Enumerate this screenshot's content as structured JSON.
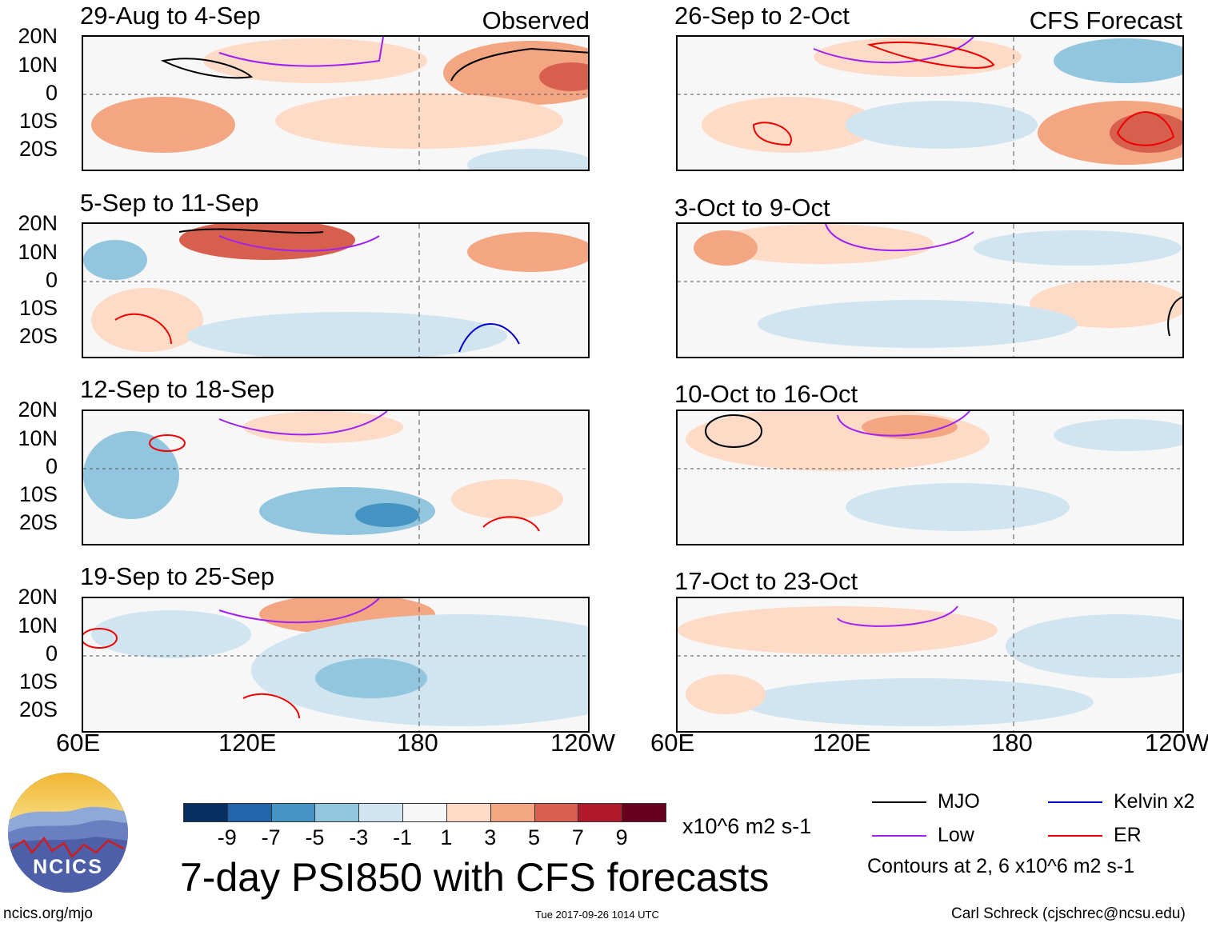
{
  "panels": [
    {
      "title": "29-Aug to 4-Sep",
      "label": "Observed"
    },
    {
      "title": "5-Sep to 11-Sep",
      "label": ""
    },
    {
      "title": "12-Sep to 18-Sep",
      "label": ""
    },
    {
      "title": "19-Sep to 25-Sep",
      "label": ""
    },
    {
      "title": "26-Sep to 2-Oct",
      "label": "CFS Forecast"
    },
    {
      "title": "3-Oct to 9-Oct",
      "label": ""
    },
    {
      "title": "10-Oct to 16-Oct",
      "label": ""
    },
    {
      "title": "17-Oct to 23-Oct",
      "label": ""
    }
  ],
  "lat_labels": [
    "20N",
    "10N",
    "0",
    "10S",
    "20S"
  ],
  "lon_labels": [
    "60E",
    "120E",
    "180",
    "120W"
  ],
  "colorbar": {
    "colors": [
      "#053061",
      "#2166ac",
      "#4393c3",
      "#92c5de",
      "#d1e5f0",
      "#f7f7f7",
      "#fddbc7",
      "#f4a582",
      "#d6604d",
      "#b2182b",
      "#67001f"
    ],
    "ticks": [
      "-9",
      "-7",
      "-5",
      "-3",
      "-1",
      "1",
      "3",
      "5",
      "7",
      "9"
    ],
    "units": "x10^6 m2 s-1"
  },
  "title": "7-day PSI850 with CFS forecasts",
  "legend": [
    {
      "label": "MJO",
      "color": "#000000"
    },
    {
      "label": "Kelvin x2",
      "color": "#0000cc"
    },
    {
      "label": "Low",
      "color": "#a020f0"
    },
    {
      "label": "ER",
      "color": "#ee0000"
    }
  ],
  "contour_note": "Contours at 2, 6 x10^6 m2 s-1",
  "footer": {
    "site": "ncics.org/mjo",
    "timestamp": "Tue 2017-09-26 1014 UTC",
    "credit": "Carl Schreck (cjschrec@ncsu.edu)"
  },
  "logo_text": "NCICS"
}
